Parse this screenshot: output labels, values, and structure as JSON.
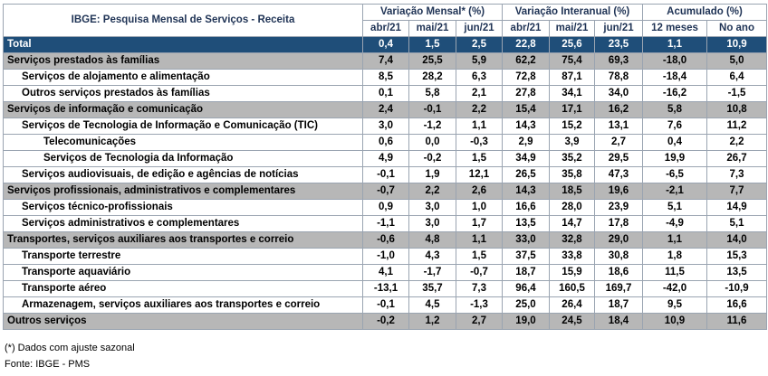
{
  "table": {
    "title": "IBGE: Pesquisa Mensal de Serviços - Receita",
    "groups": [
      "Variação Mensal* (%)",
      "Variação Interanual (%)",
      "Acumulado (%)"
    ],
    "columns": [
      "abr/21",
      "mai/21",
      "jun/21",
      "abr/21",
      "mai/21",
      "jun/21",
      "12 meses",
      "No ano"
    ],
    "rows": [
      {
        "label": "Total",
        "style": "total",
        "values": [
          "0,4",
          "1,5",
          "2,5",
          "22,8",
          "25,6",
          "23,5",
          "1,1",
          "10,9"
        ]
      },
      {
        "label": "Serviços prestados às famílias",
        "style": "grp",
        "values": [
          "7,4",
          "25,5",
          "5,9",
          "62,2",
          "75,4",
          "69,3",
          "-18,0",
          "5,0"
        ]
      },
      {
        "label": "Serviços de alojamento e alimentação",
        "style": "sub lv2",
        "values": [
          "8,5",
          "28,2",
          "6,3",
          "72,8",
          "87,1",
          "78,8",
          "-18,4",
          "6,4"
        ]
      },
      {
        "label": "Outros serviços prestados às famílias",
        "style": "sub lv2",
        "values": [
          "0,1",
          "5,8",
          "2,1",
          "27,8",
          "34,1",
          "34,0",
          "-16,2",
          "-1,5"
        ]
      },
      {
        "label": "Serviços de informação e comunicação",
        "style": "grp",
        "values": [
          "2,4",
          "-0,1",
          "2,2",
          "15,4",
          "17,1",
          "16,2",
          "5,8",
          "10,8"
        ]
      },
      {
        "label": "Serviços de Tecnologia de Informação e Comunicação (TIC)",
        "style": "sub lv2",
        "values": [
          "3,0",
          "-1,2",
          "1,1",
          "14,3",
          "15,2",
          "13,1",
          "7,6",
          "11,2"
        ]
      },
      {
        "label": "Telecomunicações",
        "style": "sub lv3",
        "values": [
          "0,6",
          "0,0",
          "-0,3",
          "2,9",
          "3,9",
          "2,7",
          "0,4",
          "2,2"
        ]
      },
      {
        "label": "Serviços de Tecnologia da Informação",
        "style": "sub lv3",
        "values": [
          "4,9",
          "-0,2",
          "1,5",
          "34,9",
          "35,2",
          "29,5",
          "19,9",
          "26,7"
        ]
      },
      {
        "label": "Serviços audiovisuais, de edição e agências de notícias",
        "style": "sub lv2",
        "values": [
          "-0,1",
          "1,9",
          "12,1",
          "26,5",
          "35,8",
          "47,3",
          "-6,5",
          "7,3"
        ]
      },
      {
        "label": "Serviços profissionais, administrativos e complementares",
        "style": "grp",
        "values": [
          "-0,7",
          "2,2",
          "2,6",
          "14,3",
          "18,5",
          "19,6",
          "-2,1",
          "7,7"
        ]
      },
      {
        "label": "Serviços técnico-profissionais",
        "style": "sub lv2",
        "values": [
          "0,9",
          "3,0",
          "1,0",
          "16,6",
          "28,0",
          "23,9",
          "5,1",
          "14,9"
        ]
      },
      {
        "label": "Serviços administrativos e complementares",
        "style": "sub lv2",
        "values": [
          "-1,1",
          "3,0",
          "1,7",
          "13,5",
          "14,7",
          "17,8",
          "-4,9",
          "5,1"
        ]
      },
      {
        "label": "Transportes, serviços auxiliares aos transportes e correio",
        "style": "grp",
        "values": [
          "-0,6",
          "4,8",
          "1,1",
          "33,0",
          "32,8",
          "29,0",
          "1,1",
          "14,0"
        ]
      },
      {
        "label": "Transporte terrestre",
        "style": "sub lv2",
        "values": [
          "-1,0",
          "4,3",
          "1,5",
          "37,5",
          "33,8",
          "30,8",
          "1,8",
          "15,3"
        ]
      },
      {
        "label": "Transporte aquaviário",
        "style": "sub lv2",
        "values": [
          "4,1",
          "-1,7",
          "-0,7",
          "18,7",
          "15,9",
          "18,6",
          "11,5",
          "13,5"
        ]
      },
      {
        "label": "Transporte aéreo",
        "style": "sub lv2",
        "values": [
          "-13,1",
          "35,7",
          "7,3",
          "96,4",
          "160,5",
          "169,7",
          "-42,0",
          "-10,9"
        ]
      },
      {
        "label": "Armazenagem, serviços auxiliares aos transportes e correio",
        "style": "sub lv2",
        "values": [
          "-0,1",
          "4,5",
          "-1,3",
          "25,0",
          "26,4",
          "18,7",
          "9,5",
          "16,6"
        ]
      },
      {
        "label": "Outros serviços",
        "style": "grp",
        "values": [
          "-0,2",
          "1,2",
          "2,7",
          "19,0",
          "24,5",
          "18,4",
          "10,9",
          "11,6"
        ]
      }
    ]
  },
  "footnote": "(*) Dados com ajuste sazonal",
  "source": "Fonte: IBGE - PMS"
}
